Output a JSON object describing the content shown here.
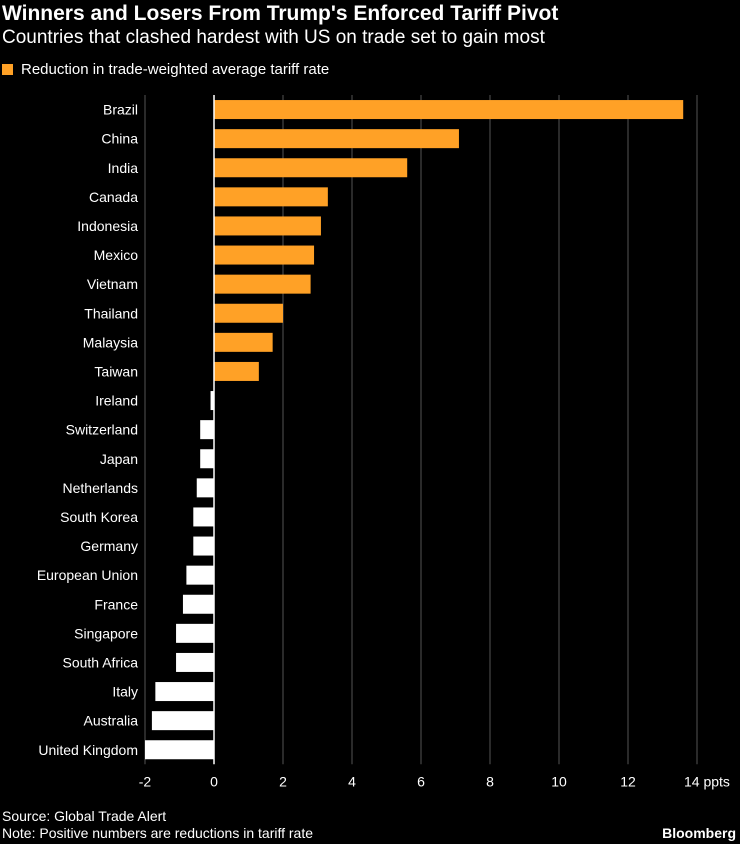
{
  "title": "Winners and Losers From Trump's Enforced Tariff Pivot",
  "subtitle": "Countries that clashed hardest with US on trade set to gain most",
  "colors": {
    "positive": "#ffa126",
    "negative": "#ffffff",
    "grid": "#555555",
    "background": "#000000"
  },
  "chart_data": {
    "type": "bar",
    "orientation": "horizontal",
    "legend": {
      "label": "Reduction in trade-weighted average tariff rate",
      "placement": "top-left"
    },
    "categories": [
      "Brazil",
      "China",
      "India",
      "Canada",
      "Indonesia",
      "Mexico",
      "Vietnam",
      "Thailand",
      "Malaysia",
      "Taiwan",
      "Ireland",
      "Switzerland",
      "Japan",
      "Netherlands",
      "South Korea",
      "Germany",
      "European Union",
      "France",
      "Singapore",
      "South Africa",
      "Italy",
      "Australia",
      "United Kingdom"
    ],
    "values": [
      13.6,
      7.1,
      5.6,
      3.3,
      3.1,
      2.9,
      2.8,
      2.0,
      1.7,
      1.3,
      -0.1,
      -0.4,
      -0.4,
      -0.5,
      -0.6,
      -0.6,
      -0.8,
      -0.9,
      -1.1,
      -1.1,
      -1.7,
      -1.8,
      -2.0
    ],
    "xlim": [
      -2,
      14
    ],
    "xticks": [
      -2,
      0,
      2,
      4,
      6,
      8,
      10,
      12,
      14
    ],
    "xtick_labels": [
      "-2",
      "0",
      "2",
      "4",
      "6",
      "8",
      "10",
      "12",
      "14 ppts"
    ],
    "grid": true
  },
  "footer": {
    "source": "Source: Global Trade Alert",
    "note": "Note: Positive numbers are reductions in tariff rate",
    "brand": "Bloomberg"
  }
}
